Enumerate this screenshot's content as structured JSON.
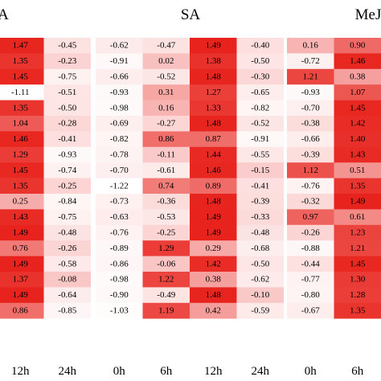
{
  "chart_data": {
    "type": "heatmap",
    "color_scale": {
      "low": "#ffffff",
      "high": "#e8231d",
      "min": -1.22,
      "max": 1.49
    },
    "panels": [
      {
        "title": "A",
        "columns": [
          "12h",
          "24h"
        ],
        "values": [
          [
            1.47,
            -0.45
          ],
          [
            1.35,
            -0.23
          ],
          [
            1.45,
            -0.75
          ],
          [
            -1.11,
            -0.51
          ],
          [
            1.35,
            -0.5
          ],
          [
            1.04,
            -0.28
          ],
          [
            1.46,
            -0.41
          ],
          [
            1.29,
            -0.93
          ],
          [
            1.45,
            -0.74
          ],
          [
            1.35,
            -0.25
          ],
          [
            0.25,
            -0.84
          ],
          [
            1.43,
            -0.75
          ],
          [
            1.49,
            -0.48
          ],
          [
            0.76,
            -0.26
          ],
          [
            1.49,
            -0.58
          ],
          [
            1.37,
            -0.08
          ],
          [
            1.49,
            -0.64
          ],
          [
            0.86,
            -0.85
          ]
        ]
      },
      {
        "title": "SA",
        "columns": [
          "0h",
          "6h",
          "12h",
          "24h"
        ],
        "values": [
          [
            -0.62,
            -0.47,
            1.49,
            -0.4
          ],
          [
            -0.91,
            0.02,
            1.38,
            -0.5
          ],
          [
            -0.66,
            -0.52,
            1.48,
            -0.3
          ],
          [
            -0.93,
            0.31,
            1.27,
            -0.65
          ],
          [
            -0.98,
            0.16,
            1.33,
            -0.82
          ],
          [
            -0.69,
            -0.27,
            1.48,
            -0.52
          ],
          [
            -0.82,
            0.86,
            0.87,
            -0.91
          ],
          [
            -0.78,
            -0.11,
            1.44,
            -0.55
          ],
          [
            -0.7,
            -0.61,
            1.46,
            -0.15
          ],
          [
            -1.22,
            0.74,
            0.89,
            -0.41
          ],
          [
            -0.73,
            -0.36,
            1.48,
            -0.39
          ],
          [
            -0.63,
            -0.53,
            1.49,
            -0.33
          ],
          [
            -0.76,
            -0.25,
            1.49,
            -0.48
          ],
          [
            -0.89,
            1.29,
            0.29,
            -0.68
          ],
          [
            -0.86,
            -0.06,
            1.42,
            -0.5
          ],
          [
            -0.98,
            1.22,
            0.38,
            -0.62
          ],
          [
            -0.9,
            -0.49,
            1.48,
            -0.1
          ],
          [
            -1.03,
            1.19,
            0.42,
            -0.59
          ]
        ]
      },
      {
        "title": "MeJ",
        "columns": [
          "0h",
          "6h"
        ],
        "values": [
          [
            0.16,
            0.9
          ],
          [
            -0.72,
            1.46
          ],
          [
            1.21,
            0.38
          ],
          [
            -0.93,
            1.07
          ],
          [
            -0.7,
            1.45
          ],
          [
            -0.38,
            1.42
          ],
          [
            -0.66,
            1.4
          ],
          [
            -0.39,
            1.43
          ],
          [
            1.12,
            0.51
          ],
          [
            -0.76,
            1.35
          ],
          [
            -0.32,
            1.49
          ],
          [
            0.97,
            0.61
          ],
          [
            -0.26,
            1.23
          ],
          [
            -0.88,
            1.21
          ],
          [
            -0.44,
            1.45
          ],
          [
            -0.77,
            1.3
          ],
          [
            -0.8,
            1.28
          ],
          [
            -0.67,
            1.35
          ]
        ]
      }
    ]
  }
}
